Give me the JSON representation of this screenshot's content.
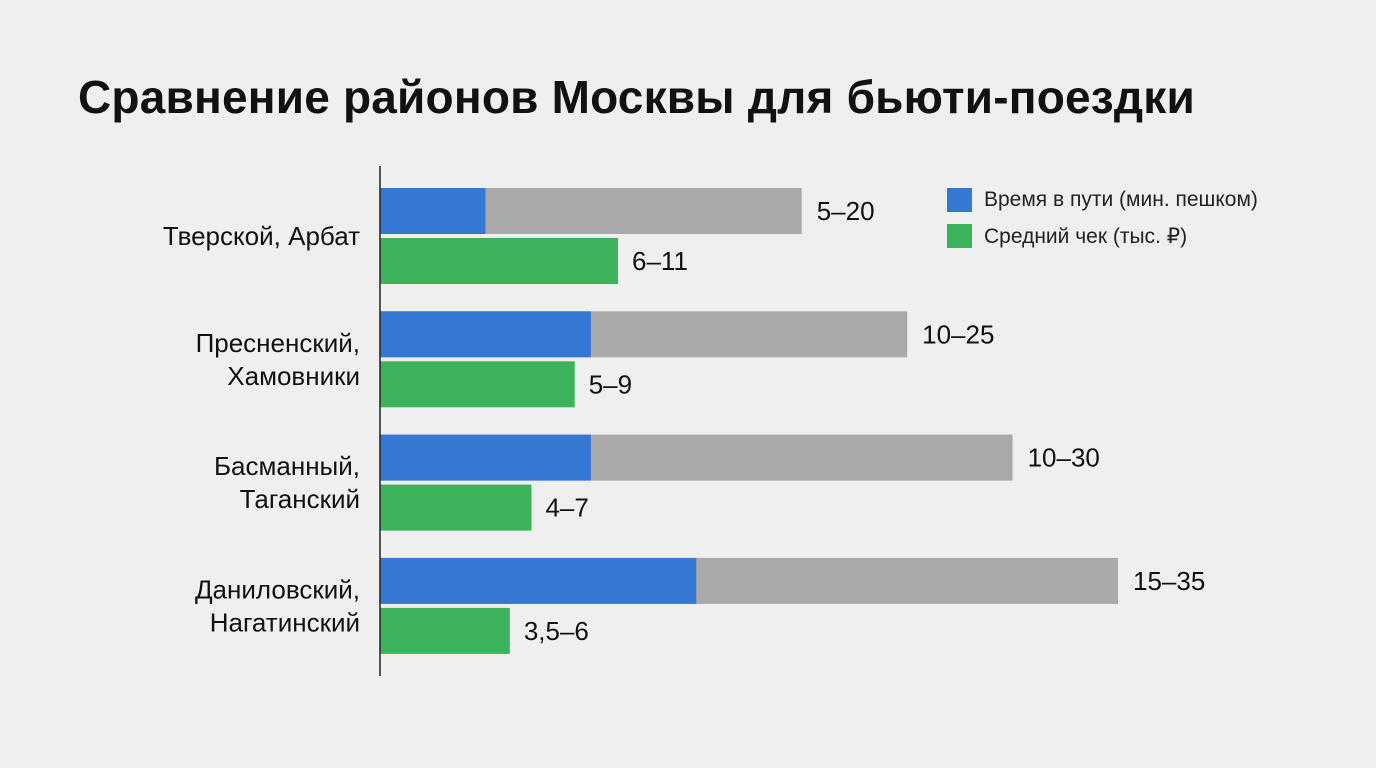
{
  "title": "Сравнение районов Москвы для бьюти-поездки",
  "colors": {
    "time_min": "#3578d4",
    "time_range": "#a9a9a9",
    "check": "#3cb35a",
    "axis": "#222222"
  },
  "legend": {
    "items": [
      {
        "label": "Время в пути (мин. пешком)",
        "color": "#3578d4"
      },
      {
        "label": "Средний чек (тыс. ₽)",
        "color": "#3cb35a"
      }
    ]
  },
  "chart_data": {
    "type": "bar",
    "orientation": "horizontal",
    "categories": [
      [
        "Тверской, Арбат"
      ],
      [
        "Пресненский,",
        "Хамовники"
      ],
      [
        "Басманный,",
        "Таганский"
      ],
      [
        "Даниловский,",
        "Нагатинский"
      ]
    ],
    "series": [
      {
        "name": "Время в пути (мин. пешком)",
        "ranges": [
          [
            5,
            20
          ],
          [
            10,
            25
          ],
          [
            10,
            30
          ],
          [
            15,
            35
          ]
        ],
        "labels": [
          "5–20",
          "10–25",
          "10–30",
          "15–35"
        ]
      },
      {
        "name": "Средний чек (тыс. ₽)",
        "values": [
          11,
          9,
          7,
          6
        ],
        "labels": [
          "6–11",
          "5–9",
          "4–7",
          "3,5–6"
        ]
      }
    ],
    "xlim_time": [
      0,
      35
    ],
    "xlim_check": [
      0,
      11
    ],
    "grid": false,
    "legend_position": "top-right"
  }
}
